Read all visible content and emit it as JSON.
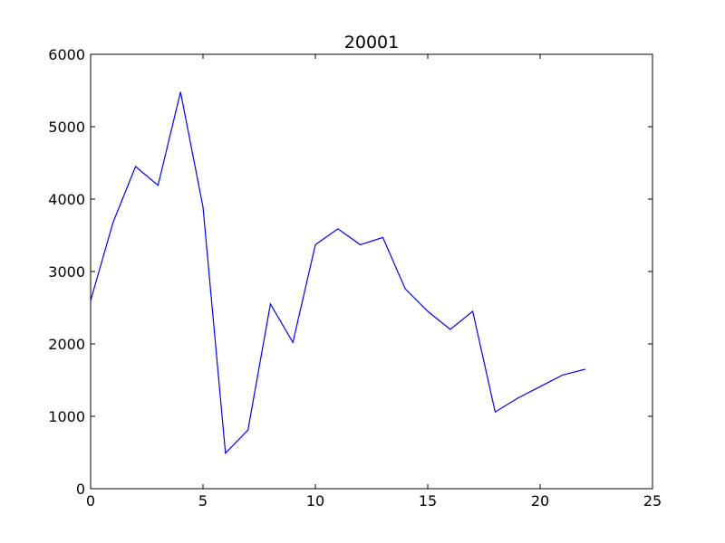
{
  "chart_data": {
    "type": "line",
    "title": "20001",
    "xlabel": "",
    "ylabel": "",
    "xlim": [
      0,
      25
    ],
    "ylim": [
      0,
      6000
    ],
    "xticks": [
      0,
      5,
      10,
      15,
      20,
      25
    ],
    "yticks": [
      0,
      1000,
      2000,
      3000,
      4000,
      5000,
      6000
    ],
    "grid": false,
    "legend": "none",
    "series": [
      {
        "color": "#0000ff",
        "x": [
          0,
          1,
          2,
          3,
          4,
          5,
          6,
          7,
          8,
          9,
          10,
          11,
          12,
          13,
          14,
          15,
          16,
          17,
          18,
          19,
          20,
          21,
          22
        ],
        "y": [
          2600,
          3680,
          4450,
          4190,
          5480,
          3890,
          490,
          810,
          2550,
          2020,
          3370,
          3590,
          3370,
          3470,
          2760,
          2450,
          2200,
          2450,
          1060,
          1250,
          1410,
          1570,
          1650
        ]
      }
    ]
  }
}
